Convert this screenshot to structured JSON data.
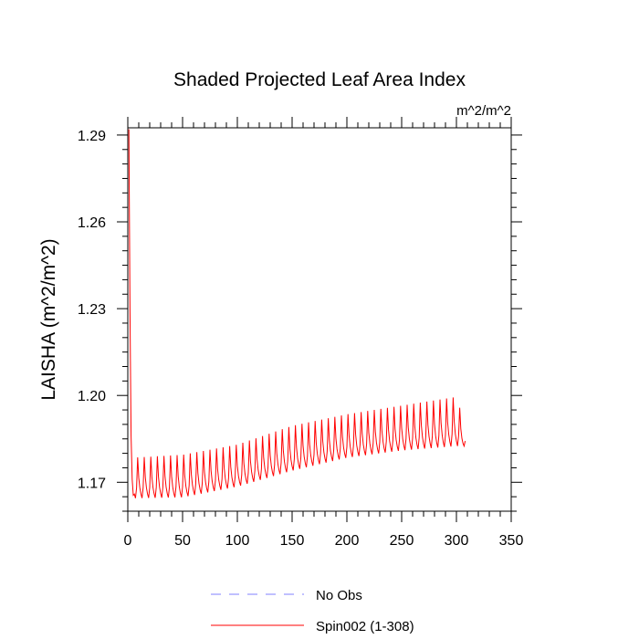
{
  "chart_data": {
    "type": "line",
    "title": "Shaded Projected Leaf Area Index",
    "units_label": "m^2/m^2",
    "ylabel": "LAISHA  (m^2/m^2)",
    "xlabel": "",
    "xlim": [
      0,
      350
    ],
    "ylim": [
      1.16,
      1.2925
    ],
    "x_ticks": [
      0,
      50,
      100,
      150,
      200,
      250,
      300,
      350
    ],
    "y_ticks": [
      1.17,
      1.2,
      1.23,
      1.26,
      1.29
    ],
    "y_tick_labels": [
      "1.17",
      "1.20",
      "1.23",
      "1.26",
      "1.29"
    ],
    "grid": false,
    "legend_position": "bottom-center",
    "series": [
      {
        "name": "No Obs",
        "color": "#8080ff",
        "style": "dashed",
        "x": [],
        "values": []
      },
      {
        "name": "Spin002 (1-308)",
        "color": "#ff0000",
        "style": "solid",
        "x_start": 1,
        "x_end": 308,
        "initial_values": [
          1.292,
          1.229,
          1.186,
          1.171,
          1.1655
        ],
        "cycle_period": 6,
        "cycle_peak_shape": [
          0.0,
          0.25,
          1.0,
          0.5,
          0.25,
          0.1
        ],
        "baseline_points": [
          [
            5,
            1.1645
          ],
          [
            50,
            1.1648
          ],
          [
            100,
            1.1685
          ],
          [
            150,
            1.174
          ],
          [
            200,
            1.1785
          ],
          [
            250,
            1.181
          ],
          [
            300,
            1.1825
          ],
          [
            308,
            1.1825
          ]
        ],
        "peak_points": [
          [
            5,
            1.1785
          ],
          [
            50,
            1.1795
          ],
          [
            100,
            1.183
          ],
          [
            150,
            1.1895
          ],
          [
            200,
            1.1935
          ],
          [
            250,
            1.1965
          ],
          [
            300,
            1.1995
          ],
          [
            308,
            1.1895
          ]
        ]
      }
    ]
  }
}
